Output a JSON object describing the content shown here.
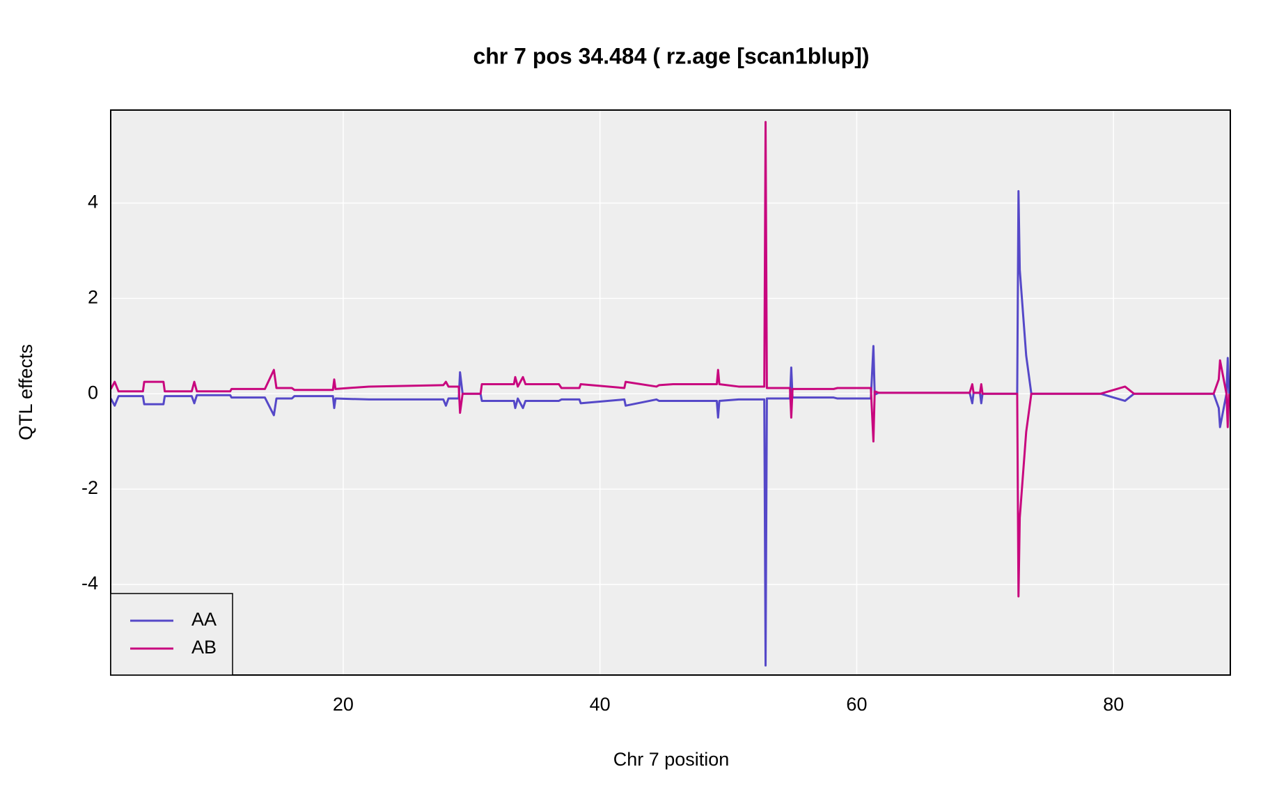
{
  "chart_data": {
    "type": "line",
    "title": "chr 7 pos 34.484 ( rz.age  [scan1blup])",
    "xlabel": "Chr 7 position",
    "ylabel": "QTL effects",
    "x": [
      1.9,
      2.2,
      2.5,
      4.4,
      4.5,
      6.0,
      6.1,
      8.2,
      8.4,
      8.6,
      11.2,
      11.3,
      13.9,
      14.6,
      14.8,
      16.0,
      16.2,
      19.2,
      19.3,
      19.4,
      22.0,
      27.8,
      28.0,
      28.2,
      29.0,
      29.1,
      29.3,
      30.7,
      30.8,
      33.3,
      33.4,
      33.6,
      34.0,
      34.2,
      34.4,
      36.8,
      37.0,
      38.4,
      38.5,
      41.9,
      42.0,
      44.4,
      44.6,
      45.7,
      49.1,
      49.2,
      49.3,
      50.8,
      52.8,
      52.9,
      53.0,
      54.8,
      54.9,
      55.0,
      58.2,
      58.5,
      61.1,
      61.3,
      61.4,
      61.7,
      68.8,
      69.0,
      69.1,
      69.6,
      69.7,
      69.8,
      72.5,
      72.6,
      72.7,
      73.2,
      73.6,
      79.0,
      80.9,
      81.6,
      87.8,
      88.2,
      88.3,
      88.8,
      88.9,
      89.0
    ],
    "series": [
      {
        "name": "AA",
        "color": "#5548c8",
        "values": [
          -0.1,
          -0.25,
          -0.05,
          -0.05,
          -0.22,
          -0.22,
          -0.05,
          -0.05,
          -0.2,
          -0.03,
          -0.03,
          -0.08,
          -0.08,
          -0.45,
          -0.1,
          -0.1,
          -0.05,
          -0.05,
          -0.3,
          -0.1,
          -0.12,
          -0.12,
          -0.25,
          -0.1,
          -0.1,
          0.45,
          0.0,
          0.0,
          -0.15,
          -0.15,
          -0.3,
          -0.1,
          -0.3,
          -0.15,
          -0.15,
          -0.15,
          -0.12,
          -0.12,
          -0.2,
          -0.12,
          -0.25,
          -0.12,
          -0.15,
          -0.15,
          -0.15,
          -0.5,
          -0.15,
          -0.12,
          -0.12,
          -5.7,
          -0.1,
          -0.1,
          0.55,
          -0.08,
          -0.08,
          -0.1,
          -0.1,
          1.0,
          -0.02,
          0.02,
          0.02,
          -0.2,
          0.02,
          0.02,
          -0.2,
          0.0,
          0.0,
          4.25,
          2.6,
          0.8,
          0.0,
          0.0,
          -0.15,
          0.0,
          0.0,
          -0.3,
          -0.7,
          0.0,
          0.75,
          0.0
        ]
      },
      {
        "name": "AB",
        "color": "#c8077e",
        "values": [
          0.1,
          0.25,
          0.05,
          0.05,
          0.25,
          0.25,
          0.05,
          0.05,
          0.25,
          0.05,
          0.05,
          0.1,
          0.1,
          0.5,
          0.12,
          0.12,
          0.08,
          0.08,
          0.3,
          0.1,
          0.15,
          0.18,
          0.25,
          0.15,
          0.15,
          -0.4,
          0.0,
          0.0,
          0.2,
          0.2,
          0.35,
          0.15,
          0.35,
          0.2,
          0.2,
          0.2,
          0.12,
          0.12,
          0.2,
          0.12,
          0.25,
          0.15,
          0.18,
          0.2,
          0.2,
          0.5,
          0.2,
          0.15,
          0.15,
          5.7,
          0.12,
          0.12,
          -0.5,
          0.1,
          0.1,
          0.12,
          0.12,
          -1.0,
          0.05,
          0.02,
          0.02,
          0.2,
          0.02,
          0.02,
          0.2,
          0.0,
          0.0,
          -4.25,
          -2.6,
          -0.8,
          0.0,
          0.0,
          0.15,
          0.0,
          0.0,
          0.3,
          0.7,
          0.0,
          -0.7,
          0.0
        ]
      }
    ],
    "xlim": [
      1.89,
      89.1
    ],
    "xticks": [
      20,
      40,
      60,
      80
    ],
    "ylim": [
      -5.9,
      5.95
    ],
    "yticks": [
      -4,
      -2,
      0,
      2,
      4
    ],
    "grid": true,
    "legend": "bottom-left"
  }
}
